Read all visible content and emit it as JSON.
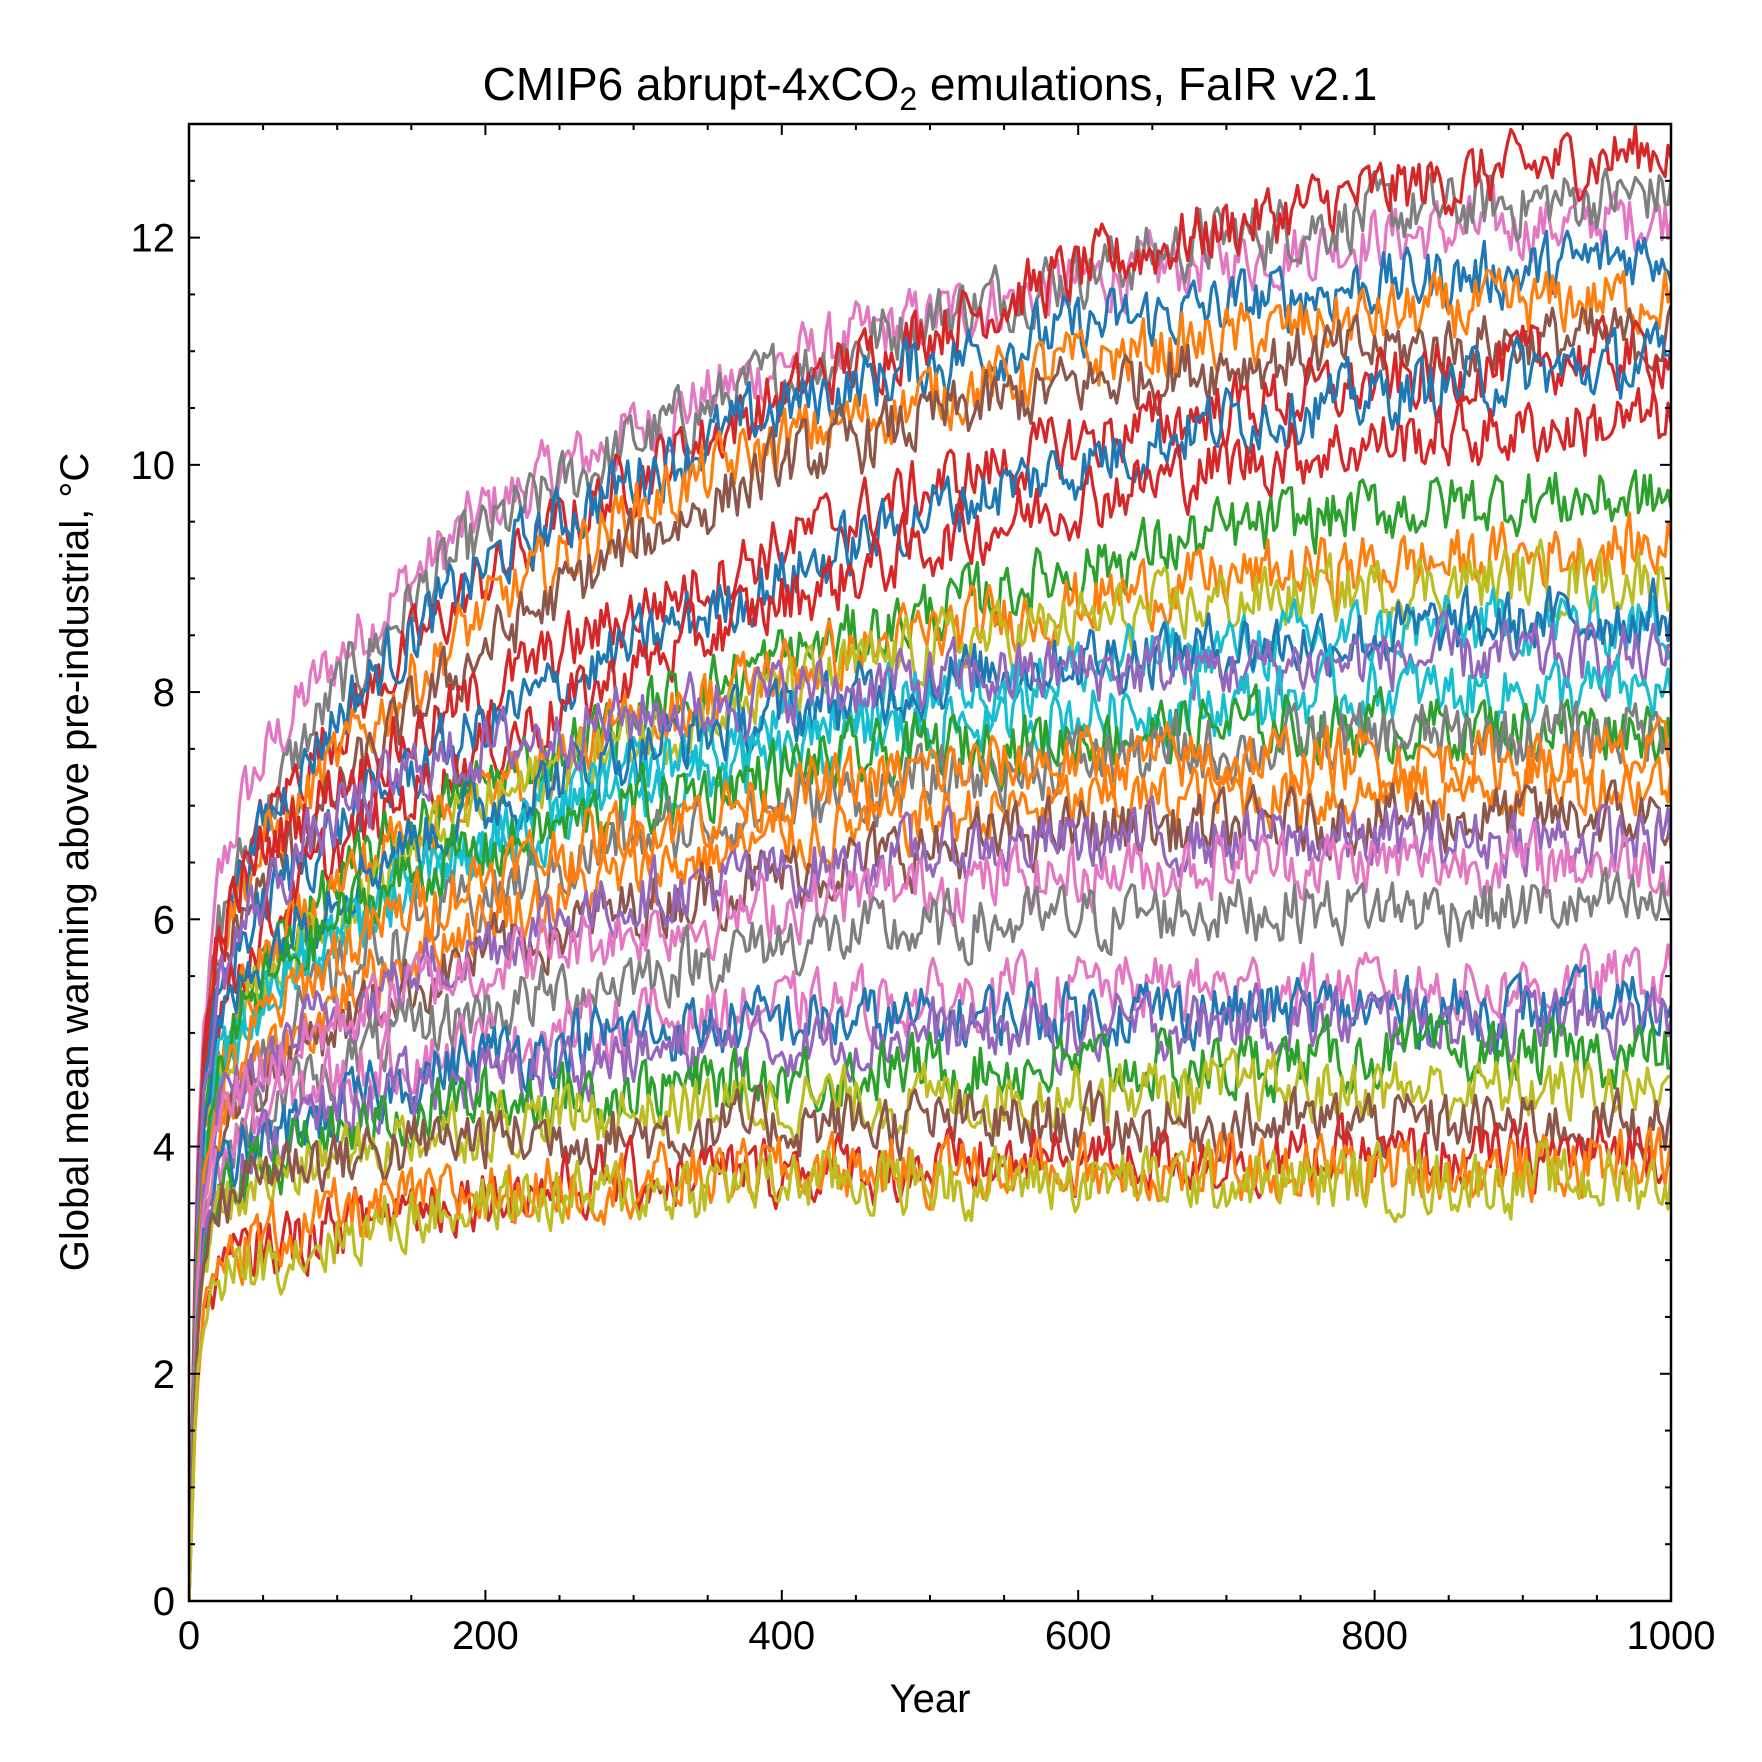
{
  "chart_data": {
    "type": "line",
    "title_main": "CMIP6 abrupt-4xCO",
    "title_sub": "2",
    "title_tail": " emulations, FaIR v2.1",
    "xlabel": "Year",
    "ylabel": "Global mean warming above pre-industrial, °C",
    "xlim": [
      0,
      1000
    ],
    "ylim": [
      0,
      13
    ],
    "xticks": [
      0,
      200,
      400,
      600,
      800,
      1000
    ],
    "xtick_labels": [
      "0",
      "200",
      "400",
      "600",
      "800",
      "1000"
    ],
    "yticks": [
      0,
      2,
      4,
      6,
      8,
      10,
      12
    ],
    "ytick_labels": [
      "0",
      "2",
      "4",
      "6",
      "8",
      "10",
      "12"
    ],
    "grid": false,
    "legend": "none",
    "palette": [
      "#1f77b4",
      "#ff7f0e",
      "#2ca02c",
      "#d62728",
      "#9467bd",
      "#8c564b",
      "#e377c2",
      "#7f7f7f",
      "#bcbd22",
      "#17becf"
    ],
    "x": [
      0,
      5,
      10,
      20,
      35,
      50,
      75,
      100,
      150,
      200,
      300,
      400,
      500,
      600,
      700,
      800,
      900,
      1000
    ],
    "noise_amplitude": 0.25,
    "series": [
      {
        "color": "#e377c2",
        "values": [
          0,
          3.6,
          5.0,
          6.3,
          7.0,
          7.4,
          7.9,
          8.3,
          9.0,
          9.6,
          10.3,
          10.9,
          11.3,
          11.6,
          11.8,
          12.0,
          12.1,
          12.2
        ]
      },
      {
        "color": "#7f7f7f",
        "values": [
          0,
          3.4,
          4.8,
          5.9,
          6.5,
          6.9,
          7.5,
          8.0,
          8.8,
          9.4,
          10.2,
          10.8,
          11.3,
          11.7,
          12.0,
          12.2,
          12.3,
          12.4
        ]
      },
      {
        "color": "#d62728",
        "values": [
          0,
          3.5,
          4.8,
          5.9,
          6.4,
          6.8,
          7.3,
          7.7,
          8.4,
          9.0,
          9.9,
          10.6,
          11.2,
          11.7,
          12.1,
          12.4,
          12.6,
          12.8
        ]
      },
      {
        "color": "#1f77b4",
        "values": [
          0,
          3.4,
          4.7,
          5.8,
          6.4,
          6.8,
          7.3,
          7.8,
          8.5,
          9.1,
          9.9,
          10.5,
          10.9,
          11.2,
          11.4,
          11.6,
          11.7,
          11.9
        ]
      },
      {
        "color": "#ff7f0e",
        "values": [
          0,
          3.4,
          4.7,
          5.8,
          6.3,
          6.6,
          7.0,
          7.4,
          8.1,
          8.7,
          9.6,
          10.2,
          10.6,
          10.9,
          11.1,
          11.3,
          11.4,
          11.5
        ]
      },
      {
        "color": "#8c564b",
        "values": [
          0,
          3.3,
          4.5,
          5.5,
          6.0,
          6.3,
          6.7,
          7.1,
          7.8,
          8.4,
          9.3,
          10.0,
          10.4,
          10.7,
          10.9,
          11.0,
          11.1,
          11.1
        ]
      },
      {
        "color": "#d62728",
        "values": [
          0,
          3.4,
          4.7,
          5.8,
          6.3,
          6.6,
          6.9,
          7.2,
          7.6,
          8.0,
          8.7,
          9.3,
          9.8,
          10.2,
          10.5,
          10.7,
          10.9,
          11.0
        ]
      },
      {
        "color": "#1f77b4",
        "values": [
          0,
          3.2,
          4.4,
          5.3,
          5.8,
          6.1,
          6.5,
          6.8,
          7.3,
          7.7,
          8.4,
          9.0,
          9.6,
          10.0,
          10.4,
          10.6,
          10.8,
          10.9
        ]
      },
      {
        "color": "#d62728",
        "values": [
          0,
          3.2,
          4.3,
          5.2,
          5.6,
          5.9,
          6.3,
          6.6,
          7.1,
          7.5,
          8.2,
          8.8,
          9.3,
          9.7,
          10.0,
          10.2,
          10.3,
          10.4
        ]
      },
      {
        "color": "#2ca02c",
        "values": [
          0,
          3.0,
          4.1,
          4.9,
          5.3,
          5.6,
          6.0,
          6.3,
          6.8,
          7.2,
          7.8,
          8.3,
          8.7,
          9.1,
          9.4,
          9.6,
          9.7,
          9.7
        ]
      },
      {
        "color": "#ff7f0e",
        "values": [
          0,
          3.0,
          4.1,
          4.9,
          5.3,
          5.6,
          6.0,
          6.3,
          6.8,
          7.1,
          7.7,
          8.2,
          8.5,
          8.8,
          9.0,
          9.1,
          9.2,
          9.3
        ]
      },
      {
        "color": "#bcbd22",
        "values": [
          0,
          2.9,
          3.9,
          4.7,
          5.1,
          5.4,
          5.8,
          6.1,
          6.6,
          7.0,
          7.6,
          8.0,
          8.4,
          8.6,
          8.8,
          8.9,
          9.0,
          9.0
        ]
      },
      {
        "color": "#17becf",
        "values": [
          0,
          2.9,
          3.9,
          4.6,
          5.0,
          5.3,
          5.6,
          5.9,
          6.3,
          6.7,
          7.3,
          7.7,
          8.0,
          8.2,
          8.4,
          8.5,
          8.6,
          8.6
        ]
      },
      {
        "color": "#1f77b4",
        "values": [
          0,
          3.1,
          4.2,
          5.0,
          5.4,
          5.7,
          6.0,
          6.3,
          6.7,
          7.0,
          7.5,
          7.8,
          8.1,
          8.3,
          8.4,
          8.5,
          8.6,
          8.7
        ]
      },
      {
        "color": "#9467bd",
        "values": [
          0,
          3.2,
          4.4,
          5.4,
          5.9,
          6.2,
          6.6,
          6.9,
          7.3,
          7.5,
          7.8,
          8.0,
          8.1,
          8.2,
          8.2,
          8.3,
          8.3,
          8.3
        ]
      },
      {
        "color": "#17becf",
        "values": [
          0,
          2.8,
          3.8,
          4.6,
          5.0,
          5.3,
          5.6,
          5.9,
          6.3,
          6.6,
          7.1,
          7.4,
          7.7,
          7.8,
          7.9,
          8.0,
          8.0,
          8.0
        ]
      },
      {
        "color": "#2ca02c",
        "values": [
          0,
          2.9,
          3.9,
          4.7,
          5.1,
          5.4,
          5.7,
          6.0,
          6.4,
          6.6,
          7.0,
          7.3,
          7.5,
          7.6,
          7.7,
          7.7,
          7.7,
          7.7
        ]
      },
      {
        "color": "#7f7f7f",
        "values": [
          0,
          2.7,
          3.6,
          4.3,
          4.7,
          4.9,
          5.2,
          5.5,
          5.9,
          6.2,
          6.7,
          7.0,
          7.2,
          7.4,
          7.5,
          7.6,
          7.6,
          7.7
        ]
      },
      {
        "color": "#ff7f0e",
        "values": [
          0,
          2.8,
          3.7,
          4.4,
          4.8,
          5.1,
          5.4,
          5.7,
          6.1,
          6.4,
          6.8,
          7.1,
          7.3,
          7.4,
          7.4,
          7.4,
          7.4,
          7.4
        ]
      },
      {
        "color": "#ff7f0e",
        "values": [
          0,
          2.6,
          3.5,
          4.1,
          4.5,
          4.7,
          5.0,
          5.3,
          5.7,
          6.0,
          6.4,
          6.7,
          6.9,
          7.0,
          7.1,
          7.1,
          7.2,
          7.2
        ]
      },
      {
        "color": "#8c564b",
        "values": [
          0,
          2.6,
          3.5,
          4.1,
          4.4,
          4.6,
          4.9,
          5.1,
          5.4,
          5.7,
          6.1,
          6.4,
          6.6,
          6.8,
          6.8,
          6.9,
          6.9,
          6.9
        ]
      },
      {
        "color": "#9467bd",
        "values": [
          0,
          2.7,
          3.6,
          4.2,
          4.5,
          4.7,
          5.0,
          5.2,
          5.5,
          5.8,
          6.2,
          6.4,
          6.6,
          6.7,
          6.7,
          6.7,
          6.7,
          6.7
        ]
      },
      {
        "color": "#e377c2",
        "values": [
          0,
          2.6,
          3.5,
          4.2,
          4.5,
          4.7,
          4.9,
          5.1,
          5.4,
          5.6,
          5.9,
          6.1,
          6.3,
          6.4,
          6.5,
          6.5,
          6.5,
          6.5
        ]
      },
      {
        "color": "#7f7f7f",
        "values": [
          0,
          2.5,
          3.3,
          3.9,
          4.1,
          4.3,
          4.5,
          4.7,
          5.0,
          5.2,
          5.5,
          5.8,
          5.9,
          6.0,
          6.1,
          6.1,
          6.1,
          6.1
        ]
      },
      {
        "color": "#e377c2",
        "values": [
          0,
          2.5,
          3.3,
          3.9,
          4.1,
          4.3,
          4.5,
          4.6,
          4.8,
          4.9,
          5.1,
          5.2,
          5.3,
          5.4,
          5.4,
          5.4,
          5.4,
          5.5
        ]
      },
      {
        "color": "#1f77b4",
        "values": [
          0,
          2.4,
          3.2,
          3.7,
          3.9,
          4.0,
          4.2,
          4.3,
          4.6,
          4.8,
          5.0,
          5.1,
          5.1,
          5.2,
          5.2,
          5.2,
          5.2,
          5.2
        ]
      },
      {
        "color": "#9467bd",
        "values": [
          0,
          2.4,
          3.2,
          3.7,
          3.9,
          4.0,
          4.2,
          4.3,
          4.5,
          4.6,
          4.8,
          4.9,
          5.0,
          5.0,
          5.1,
          5.1,
          5.1,
          5.1
        ]
      },
      {
        "color": "#2ca02c",
        "values": [
          0,
          2.3,
          3.0,
          3.5,
          3.7,
          3.8,
          4.0,
          4.1,
          4.3,
          4.4,
          4.5,
          4.6,
          4.7,
          4.7,
          4.7,
          4.8,
          4.8,
          4.8
        ]
      },
      {
        "color": "#bcbd22",
        "values": [
          0,
          2.2,
          2.9,
          3.4,
          3.6,
          3.7,
          3.8,
          3.9,
          4.1,
          4.2,
          4.3,
          4.4,
          4.4,
          4.5,
          4.5,
          4.5,
          4.5,
          4.5
        ]
      },
      {
        "color": "#8c564b",
        "values": [
          0,
          2.3,
          3.0,
          3.5,
          3.7,
          3.8,
          3.9,
          3.9,
          4.0,
          4.1,
          4.1,
          4.2,
          4.2,
          4.2,
          4.2,
          4.2,
          4.2,
          4.2
        ]
      },
      {
        "color": "#d62728",
        "values": [
          0,
          1.9,
          2.5,
          2.9,
          3.0,
          3.1,
          3.2,
          3.3,
          3.5,
          3.6,
          3.7,
          3.8,
          3.8,
          3.9,
          3.9,
          3.9,
          3.9,
          4.0
        ]
      },
      {
        "color": "#ff7f0e",
        "values": [
          0,
          1.9,
          2.5,
          2.9,
          3.1,
          3.2,
          3.3,
          3.4,
          3.5,
          3.6,
          3.7,
          3.8,
          3.8,
          3.8,
          3.8,
          3.8,
          3.8,
          3.9
        ]
      },
      {
        "color": "#bcbd22",
        "values": [
          0,
          1.9,
          2.5,
          2.8,
          2.9,
          3.0,
          3.1,
          3.2,
          3.4,
          3.5,
          3.6,
          3.7,
          3.7,
          3.7,
          3.7,
          3.7,
          3.7,
          3.7
        ]
      }
    ]
  }
}
